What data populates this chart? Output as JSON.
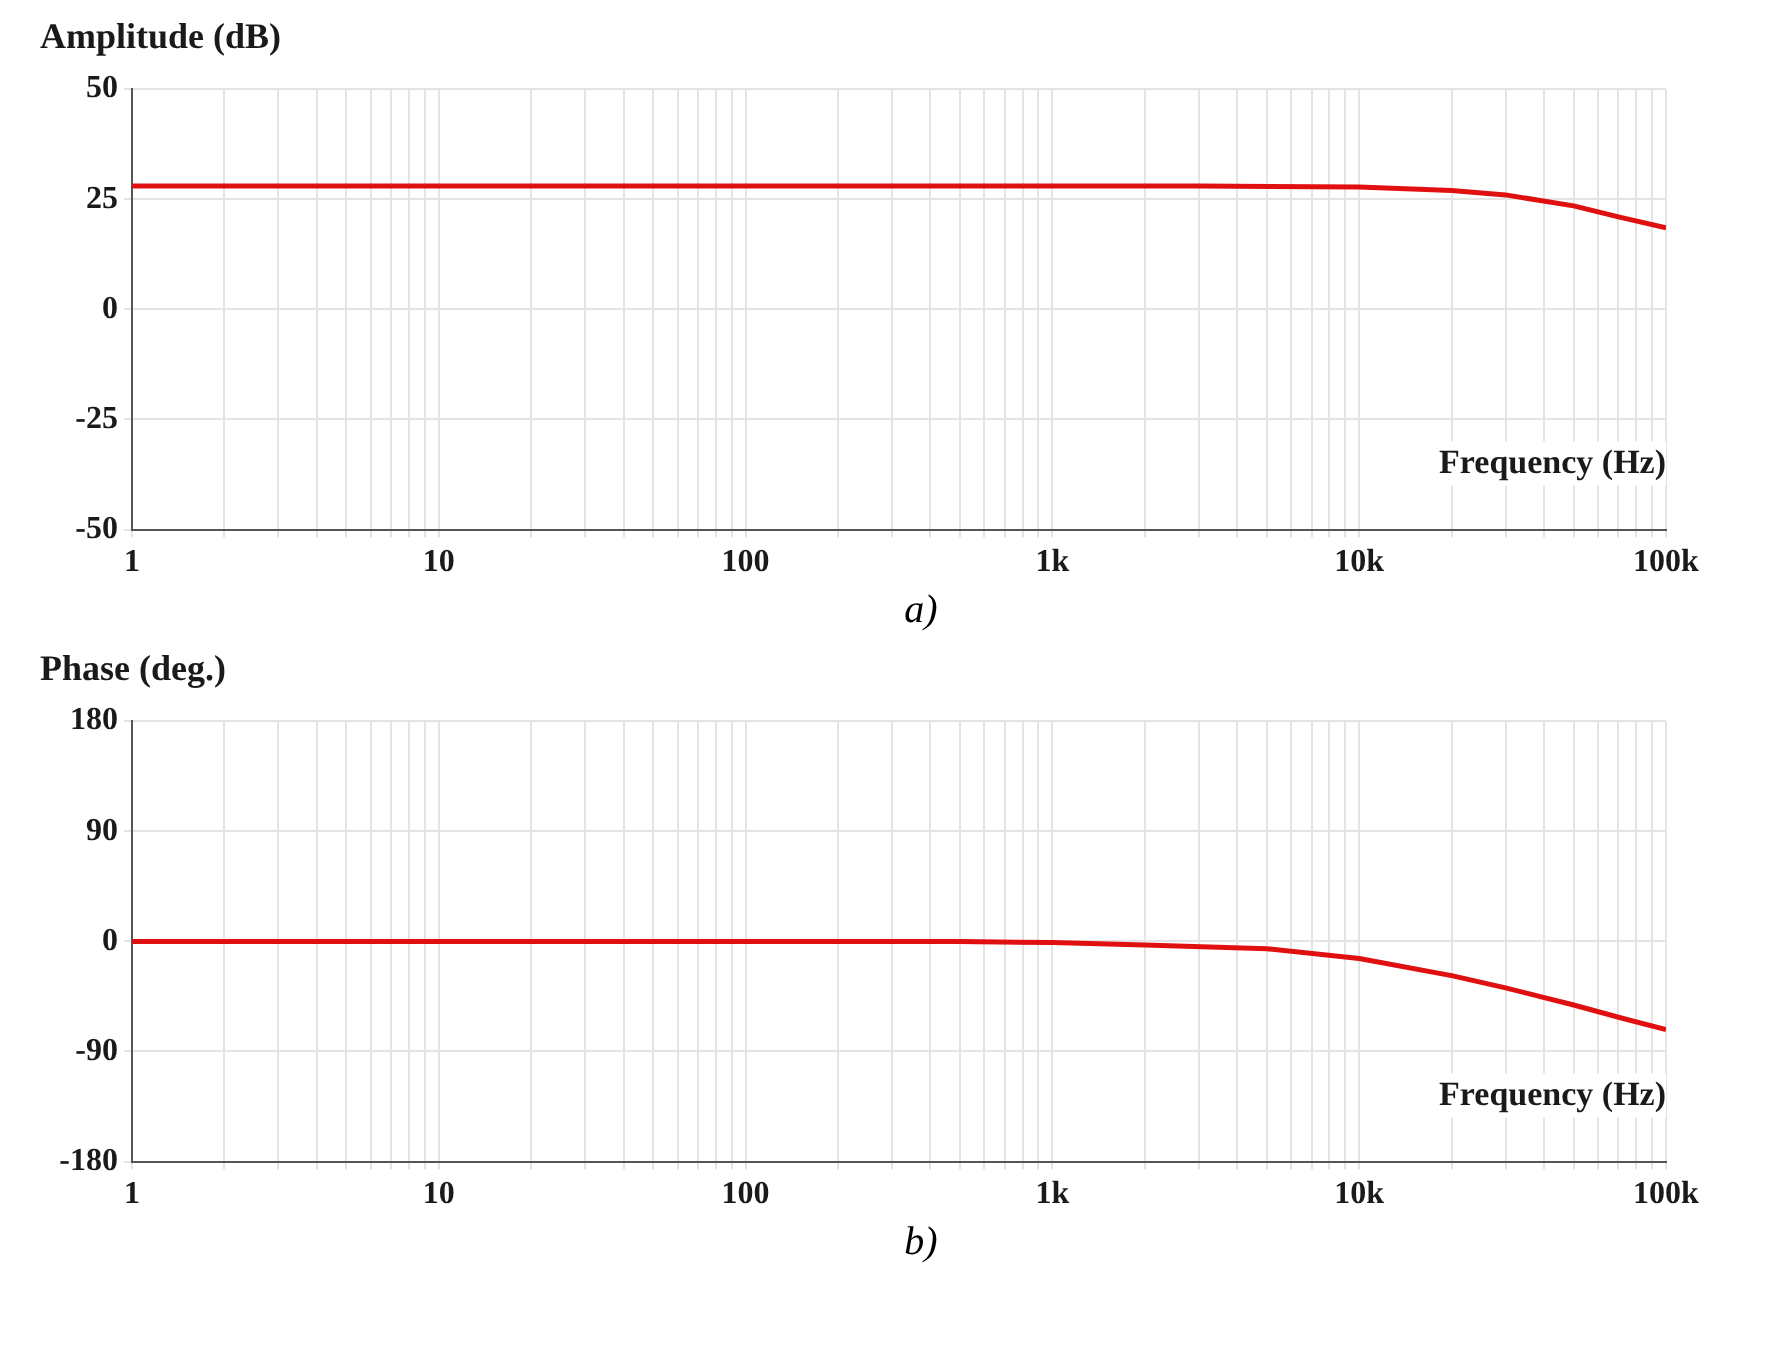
{
  "chart_data": [
    {
      "type": "line",
      "ylabel": "Amplitude (dB)",
      "xlabel": "Frequency (Hz)",
      "annotations": [
        "a)"
      ],
      "log": "x",
      "grid": true,
      "x": [
        1,
        10,
        100,
        1000,
        3000,
        10000,
        20000,
        30000,
        50000,
        70000,
        100000
      ],
      "series": [
        {
          "color": "#e01010",
          "values": [
            28,
            28,
            28,
            28,
            28,
            27.8,
            27,
            26,
            23.5,
            21,
            18.5
          ]
        }
      ],
      "xlim": [
        1,
        100000
      ],
      "ylim": [
        -50,
        50
      ],
      "yticks": [
        -50,
        -25,
        0,
        25,
        50
      ],
      "xticks": [
        {
          "value": 1,
          "label": "1"
        },
        {
          "value": 2,
          "label": null
        },
        {
          "value": 3,
          "label": null
        },
        {
          "value": 4,
          "label": null
        },
        {
          "value": 5,
          "label": null
        },
        {
          "value": 6,
          "label": null
        },
        {
          "value": 7,
          "label": null
        },
        {
          "value": 8,
          "label": null
        },
        {
          "value": 9,
          "label": null
        },
        {
          "value": 10,
          "label": "10"
        },
        {
          "value": 20,
          "label": null
        },
        {
          "value": 30,
          "label": null
        },
        {
          "value": 40,
          "label": null
        },
        {
          "value": 50,
          "label": null
        },
        {
          "value": 60,
          "label": null
        },
        {
          "value": 70,
          "label": null
        },
        {
          "value": 80,
          "label": null
        },
        {
          "value": 90,
          "label": null
        },
        {
          "value": 100,
          "label": "100"
        },
        {
          "value": 200,
          "label": null
        },
        {
          "value": 300,
          "label": null
        },
        {
          "value": 400,
          "label": null
        },
        {
          "value": 500,
          "label": null
        },
        {
          "value": 600,
          "label": null
        },
        {
          "value": 700,
          "label": null
        },
        {
          "value": 800,
          "label": null
        },
        {
          "value": 900,
          "label": null
        },
        {
          "value": 1000,
          "label": "1k"
        },
        {
          "value": 2000,
          "label": null
        },
        {
          "value": 3000,
          "label": null
        },
        {
          "value": 4000,
          "label": null
        },
        {
          "value": 5000,
          "label": null
        },
        {
          "value": 6000,
          "label": null
        },
        {
          "value": 7000,
          "label": null
        },
        {
          "value": 8000,
          "label": null
        },
        {
          "value": 9000,
          "label": null
        },
        {
          "value": 10000,
          "label": "10k"
        },
        {
          "value": 20000,
          "label": null
        },
        {
          "value": 30000,
          "label": null
        },
        {
          "value": 40000,
          "label": null
        },
        {
          "value": 50000,
          "label": null
        },
        {
          "value": 60000,
          "label": null
        },
        {
          "value": 70000,
          "label": null
        },
        {
          "value": 80000,
          "label": null
        },
        {
          "value": 90000,
          "label": null
        },
        {
          "value": 100000,
          "label": "100k"
        }
      ]
    },
    {
      "type": "line",
      "ylabel": "Phase (deg.)",
      "xlabel": "Frequency (Hz)",
      "annotations": [
        "b)"
      ],
      "log": "x",
      "grid": true,
      "x": [
        1,
        10,
        100,
        500,
        1000,
        2000,
        5000,
        10000,
        20000,
        30000,
        50000,
        70000,
        100000
      ],
      "series": [
        {
          "color": "#e01010",
          "values": [
            0,
            0,
            0,
            0,
            -1,
            -3,
            -6,
            -14,
            -28,
            -38,
            -52,
            -62,
            -72
          ]
        }
      ],
      "xlim": [
        1,
        100000
      ],
      "ylim": [
        -180,
        180
      ],
      "yticks": [
        -180,
        -90,
        0,
        90,
        180
      ],
      "xticks": [
        {
          "value": 1,
          "label": "1"
        },
        {
          "value": 2,
          "label": null
        },
        {
          "value": 3,
          "label": null
        },
        {
          "value": 4,
          "label": null
        },
        {
          "value": 5,
          "label": null
        },
        {
          "value": 6,
          "label": null
        },
        {
          "value": 7,
          "label": null
        },
        {
          "value": 8,
          "label": null
        },
        {
          "value": 9,
          "label": null
        },
        {
          "value": 10,
          "label": "10"
        },
        {
          "value": 20,
          "label": null
        },
        {
          "value": 30,
          "label": null
        },
        {
          "value": 40,
          "label": null
        },
        {
          "value": 50,
          "label": null
        },
        {
          "value": 60,
          "label": null
        },
        {
          "value": 70,
          "label": null
        },
        {
          "value": 80,
          "label": null
        },
        {
          "value": 90,
          "label": null
        },
        {
          "value": 100,
          "label": "100"
        },
        {
          "value": 200,
          "label": null
        },
        {
          "value": 300,
          "label": null
        },
        {
          "value": 400,
          "label": null
        },
        {
          "value": 500,
          "label": null
        },
        {
          "value": 600,
          "label": null
        },
        {
          "value": 700,
          "label": null
        },
        {
          "value": 800,
          "label": null
        },
        {
          "value": 900,
          "label": null
        },
        {
          "value": 1000,
          "label": "1k"
        },
        {
          "value": 2000,
          "label": null
        },
        {
          "value": 3000,
          "label": null
        },
        {
          "value": 4000,
          "label": null
        },
        {
          "value": 5000,
          "label": null
        },
        {
          "value": 6000,
          "label": null
        },
        {
          "value": 7000,
          "label": null
        },
        {
          "value": 8000,
          "label": null
        },
        {
          "value": 9000,
          "label": null
        },
        {
          "value": 10000,
          "label": "10k"
        },
        {
          "value": 20000,
          "label": null
        },
        {
          "value": 30000,
          "label": null
        },
        {
          "value": 40000,
          "label": null
        },
        {
          "value": 50000,
          "label": null
        },
        {
          "value": 60000,
          "label": null
        },
        {
          "value": 70000,
          "label": null
        },
        {
          "value": 80000,
          "label": null
        },
        {
          "value": 90000,
          "label": null
        },
        {
          "value": 100000,
          "label": "100k"
        }
      ]
    }
  ]
}
